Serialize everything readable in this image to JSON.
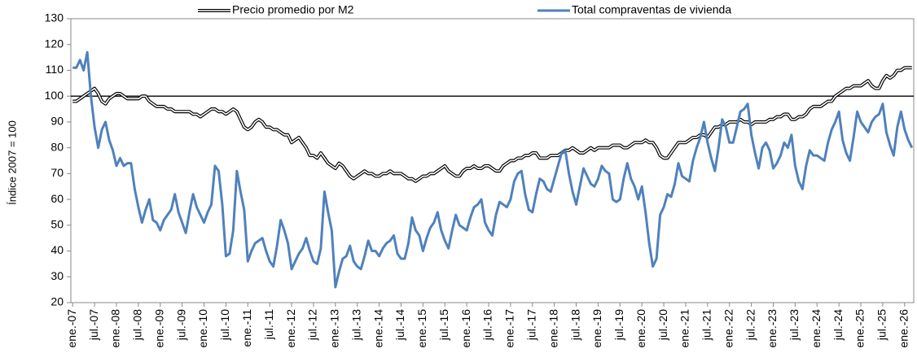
{
  "chart_data": {
    "type": "line",
    "y_label": "Índice 2007 = 100",
    "ylim": [
      20,
      130
    ],
    "yticks": [
      20,
      30,
      40,
      50,
      60,
      70,
      80,
      90,
      100,
      110,
      120,
      130
    ],
    "reference_line": 100,
    "categories": [
      "ene.-07",
      null,
      null,
      null,
      null,
      null,
      "jul.-07",
      null,
      null,
      null,
      null,
      null,
      "ene.-08",
      null,
      null,
      null,
      null,
      null,
      "jul.-08",
      null,
      null,
      null,
      null,
      null,
      "ene.-09",
      null,
      null,
      null,
      null,
      null,
      "jul.-09",
      null,
      null,
      null,
      null,
      null,
      "ene.-10",
      null,
      null,
      null,
      null,
      null,
      "jul.-10",
      null,
      null,
      null,
      null,
      null,
      "ene.-11",
      null,
      null,
      null,
      null,
      null,
      "jul.-11",
      null,
      null,
      null,
      null,
      null,
      "ene.-12",
      null,
      null,
      null,
      null,
      null,
      "jul.-12",
      null,
      null,
      null,
      null,
      null,
      "ene.-13",
      null,
      null,
      null,
      null,
      null,
      "jul.-13",
      null,
      null,
      null,
      null,
      null,
      "ene.-14",
      null,
      null,
      null,
      null,
      null,
      "jul.-14",
      null,
      null,
      null,
      null,
      null,
      "ene.-15",
      null,
      null,
      null,
      null,
      null,
      "jul.-15",
      null,
      null,
      null,
      null,
      null,
      "ene.-16",
      null,
      null,
      null,
      null,
      null,
      "jul.-16",
      null,
      null,
      null,
      null,
      null,
      "ene.-17",
      null,
      null,
      null,
      null,
      null,
      "jul.-17",
      null,
      null,
      null,
      null,
      null,
      "ene.-18",
      null,
      null,
      null,
      null,
      null,
      "jul.-18",
      null,
      null,
      null,
      null,
      null,
      "ene.-19",
      null,
      null,
      null,
      null,
      null,
      "jul.-19",
      null,
      null,
      null,
      null,
      null,
      "ene.-20",
      null,
      null,
      null,
      null,
      null,
      "jul.-20",
      null,
      null,
      null,
      null,
      null,
      "ene.-21",
      null,
      null,
      null,
      null,
      null,
      "jul.-21",
      null,
      null,
      null,
      null,
      null,
      "ene.-22",
      null,
      null,
      null,
      null,
      null,
      "jul.-22",
      null,
      null,
      null,
      null,
      null,
      "ene.-23",
      null,
      null,
      null,
      null,
      null,
      "jul.-23",
      null,
      null,
      null,
      null,
      null,
      "ene.-24",
      null,
      null,
      null,
      null,
      null,
      "jul.-24",
      null,
      null,
      null,
      null,
      null,
      "ene.-25",
      null,
      null,
      null,
      null,
      null,
      "jul.-25",
      null,
      null,
      null,
      null,
      null,
      "ene.-26",
      null,
      null
    ],
    "series": [
      {
        "name": "Precio promedio por M2",
        "color": "#000000",
        "line_style": "double",
        "values": [
          98,
          98,
          99,
          100,
          101,
          102,
          103,
          101,
          98,
          97,
          99,
          100,
          101,
          101,
          100,
          99,
          99,
          99,
          99,
          100,
          100,
          98,
          97,
          96,
          96,
          96,
          95,
          95,
          94,
          94,
          94,
          94,
          94,
          93,
          93,
          92,
          93,
          94,
          95,
          95,
          94,
          94,
          93,
          94,
          95,
          94,
          91,
          88,
          87,
          88,
          90,
          91,
          90,
          88,
          88,
          87,
          87,
          86,
          85,
          85,
          82,
          83,
          84,
          82,
          80,
          77,
          77,
          76,
          78,
          76,
          74,
          73,
          72,
          74,
          73,
          71,
          69,
          68,
          69,
          70,
          71,
          70,
          70,
          69,
          69,
          70,
          70,
          71,
          70,
          70,
          70,
          69,
          68,
          68,
          67,
          68,
          69,
          69,
          70,
          70,
          71,
          72,
          73,
          71,
          70,
          69,
          69,
          71,
          72,
          72,
          73,
          72,
          72,
          73,
          73,
          72,
          71,
          71,
          73,
          74,
          75,
          75,
          76,
          76,
          77,
          77,
          78,
          78,
          76,
          76,
          76,
          77,
          77,
          77,
          78,
          79,
          79,
          80,
          79,
          78,
          78,
          79,
          80,
          79,
          80,
          80,
          80,
          80,
          81,
          81,
          81,
          80,
          80,
          81,
          82,
          82,
          82,
          83,
          82,
          82,
          80,
          77,
          76,
          76,
          78,
          80,
          82,
          82,
          82,
          83,
          84,
          84,
          85,
          85,
          84,
          86,
          88,
          88,
          89,
          89,
          90,
          90,
          90,
          91,
          90,
          90,
          89,
          90,
          90,
          90,
          90,
          91,
          91,
          92,
          92,
          93,
          93,
          91,
          91,
          92,
          92,
          93,
          95,
          96,
          96,
          96,
          97,
          98,
          98,
          100,
          101,
          102,
          103,
          103,
          104,
          104,
          104,
          105,
          106,
          104,
          103,
          103,
          106,
          108,
          107,
          108,
          110,
          110,
          111,
          111,
          111
        ]
      },
      {
        "name": "Total compraventas de vivienda",
        "color": "#4f81bd",
        "line_style": "solid",
        "values": [
          111,
          111,
          114,
          110,
          117,
          100,
          88,
          80,
          87,
          90,
          83,
          79,
          73,
          76,
          73,
          74,
          74,
          64,
          57,
          51,
          56,
          60,
          52,
          51,
          48,
          52,
          54,
          56,
          62,
          55,
          51,
          47,
          55,
          62,
          57,
          54,
          51,
          55,
          58,
          73,
          71,
          58,
          38,
          39,
          48,
          71,
          63,
          56,
          36,
          40,
          43,
          44,
          45,
          40,
          36,
          34,
          42,
          52,
          48,
          43,
          33,
          36,
          39,
          41,
          45,
          40,
          36,
          35,
          41,
          63,
          55,
          48,
          26,
          32,
          37,
          38,
          42,
          36,
          34,
          33,
          38,
          44,
          40,
          40,
          38,
          41,
          43,
          44,
          46,
          39,
          37,
          37,
          43,
          53,
          48,
          46,
          40,
          45,
          49,
          51,
          55,
          48,
          44,
          41,
          48,
          54,
          50,
          49,
          48,
          53,
          57,
          58,
          60,
          51,
          48,
          46,
          54,
          59,
          58,
          57,
          60,
          67,
          70,
          71,
          62,
          56,
          55,
          62,
          68,
          67,
          64,
          63,
          68,
          73,
          78,
          79,
          70,
          63,
          58,
          65,
          72,
          69,
          66,
          65,
          68,
          73,
          71,
          70,
          60,
          59,
          60,
          68,
          74,
          68,
          65,
          60,
          65,
          55,
          43,
          34,
          37,
          54,
          57,
          62,
          61,
          66,
          74,
          69,
          68,
          67,
          75,
          80,
          84,
          90,
          82,
          76,
          71,
          80,
          91,
          88,
          82,
          82,
          88,
          94,
          95,
          97,
          85,
          78,
          72,
          80,
          82,
          79,
          72,
          74,
          77,
          82,
          80,
          85,
          73,
          67,
          64,
          73,
          79,
          77,
          77,
          76,
          75,
          82,
          87,
          90,
          94,
          83,
          78,
          75,
          84,
          94,
          90,
          88,
          86,
          90,
          92,
          93,
          97,
          86,
          81,
          77,
          88,
          94,
          87,
          83,
          80
        ]
      }
    ]
  }
}
